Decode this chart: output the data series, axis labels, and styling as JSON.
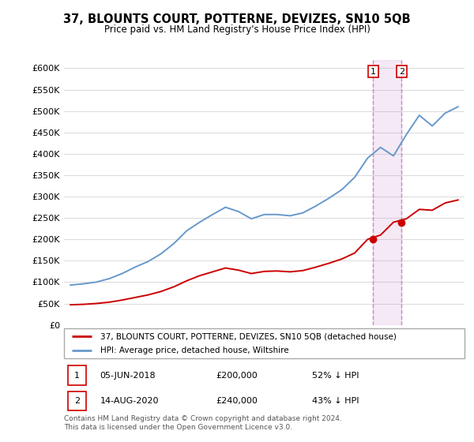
{
  "title": "37, BLOUNTS COURT, POTTERNE, DEVIZES, SN10 5QB",
  "subtitle": "Price paid vs. HM Land Registry's House Price Index (HPI)",
  "red_label": "37, BLOUNTS COURT, POTTERNE, DEVIZES, SN10 5QB (detached house)",
  "blue_label": "HPI: Average price, detached house, Wiltshire",
  "footnote": "Contains HM Land Registry data © Crown copyright and database right 2024.\nThis data is licensed under the Open Government Licence v3.0.",
  "transaction1_date": "05-JUN-2018",
  "transaction1_price": 200000,
  "transaction1_note": "52% ↓ HPI",
  "transaction2_date": "14-AUG-2020",
  "transaction2_price": 240000,
  "transaction2_note": "43% ↓ HPI",
  "transaction1_x": 2018.43,
  "transaction2_x": 2020.62,
  "ylim_min": 0,
  "ylim_max": 620000,
  "yticks": [
    0,
    50000,
    100000,
    150000,
    200000,
    250000,
    300000,
    350000,
    400000,
    450000,
    500000,
    550000,
    600000
  ],
  "background_color": "#ffffff",
  "plot_bg_color": "#ffffff",
  "grid_color": "#dddddd",
  "red_color": "#cc0000",
  "blue_color": "#6699cc",
  "vline_color": "#cc88cc",
  "hpi_years": [
    1995,
    1996,
    1997,
    1998,
    1999,
    2000,
    2001,
    2002,
    2003,
    2004,
    2005,
    2006,
    2007,
    2008,
    2009,
    2010,
    2011,
    2012,
    2013,
    2014,
    2015,
    2016,
    2017,
    2018,
    2019,
    2020,
    2021,
    2022,
    2023,
    2024,
    2025
  ],
  "hpi_values": [
    93000,
    96000,
    100000,
    108000,
    120000,
    135000,
    148000,
    166000,
    190000,
    220000,
    240000,
    258000,
    275000,
    265000,
    248000,
    258000,
    258000,
    255000,
    262000,
    278000,
    296000,
    316000,
    345000,
    390000,
    415000,
    395000,
    445000,
    490000,
    465000,
    495000,
    510000
  ],
  "red_years": [
    1995,
    1996,
    1997,
    1998,
    1999,
    2000,
    2001,
    2002,
    2003,
    2004,
    2005,
    2006,
    2007,
    2008,
    2009,
    2010,
    2011,
    2012,
    2013,
    2014,
    2015,
    2016,
    2017,
    2018,
    2019,
    2020,
    2021,
    2022,
    2023,
    2024,
    2025
  ],
  "red_values": [
    47000,
    48000,
    50000,
    53000,
    58000,
    64000,
    70000,
    78000,
    89000,
    103000,
    115000,
    124000,
    133000,
    128000,
    120000,
    125000,
    126000,
    124000,
    127000,
    135000,
    144000,
    154000,
    168000,
    200000,
    210000,
    240000,
    248000,
    270000,
    268000,
    285000,
    292000
  ],
  "legend_box_color": "#aaaaaa",
  "table_box_color": "#cc0000",
  "footnote_color": "#555555"
}
